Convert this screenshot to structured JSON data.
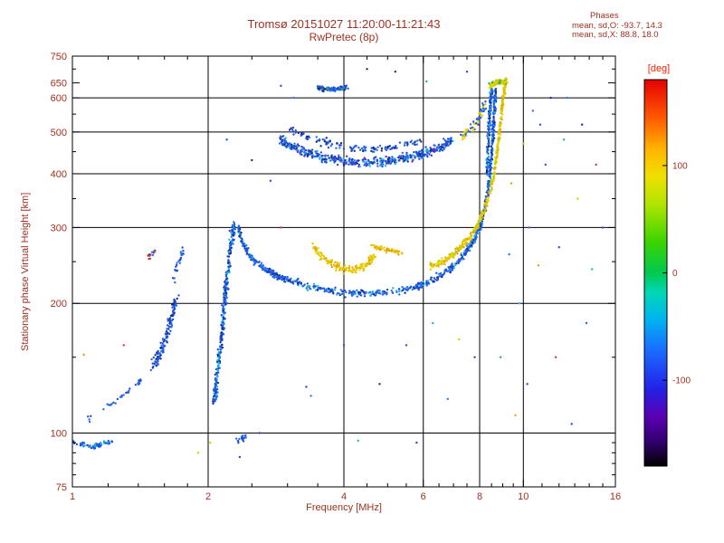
{
  "colors": {
    "background": "#ffffff",
    "text": "#a03020",
    "accent_red": "#ff1a00",
    "axis": "#000000",
    "grid": "#000000"
  },
  "chart_data": {
    "type": "scatter",
    "title": "Tromsø 20151027 11:20:00-11:21:43",
    "subtitle": "RwPretec (8p)",
    "annotations": [
      "Phases",
      "mean, sd,O: -93.7, 14.3",
      "mean, sd,X:  88.8, 18.0"
    ],
    "xlabel": "Frequency [MHz]",
    "ylabel": "Stationary phase Virtual Height [km]",
    "x_scale": "log",
    "y_scale": "log",
    "xlim": [
      1,
      16
    ],
    "ylim": [
      75,
      750
    ],
    "x_ticks": [
      1,
      2,
      4,
      6,
      8,
      10,
      16
    ],
    "y_ticks": [
      75,
      100,
      200,
      300,
      400,
      500,
      600,
      650,
      750
    ],
    "x_minor_ticks": [
      1.2,
      1.4,
      1.6,
      1.8,
      2.5,
      3,
      3.5,
      4.5,
      5,
      5.5,
      6.5,
      7,
      7.5,
      8.5,
      9,
      9.5,
      11,
      12,
      13,
      14,
      15
    ],
    "y_minor_ticks": [
      80,
      85,
      90,
      95,
      150,
      250,
      350,
      450,
      550,
      700
    ],
    "grid_x": [
      2,
      4,
      6,
      8,
      10
    ],
    "grid_y": [
      100,
      200,
      300,
      400,
      500,
      600
    ],
    "colorbar": {
      "title": "[deg]",
      "ticks": [
        100,
        0,
        -100
      ],
      "range": [
        -180,
        180
      ],
      "stops": [
        [
          0.0,
          "#000000"
        ],
        [
          0.06,
          "#30006a"
        ],
        [
          0.13,
          "#5a00b4"
        ],
        [
          0.2,
          "#2222e6"
        ],
        [
          0.3,
          "#1b6cff"
        ],
        [
          0.38,
          "#00b4f0"
        ],
        [
          0.45,
          "#00d8b4"
        ],
        [
          0.5,
          "#00c850"
        ],
        [
          0.58,
          "#3cd400"
        ],
        [
          0.68,
          "#b4e400"
        ],
        [
          0.75,
          "#f0e000"
        ],
        [
          0.82,
          "#ffb400"
        ],
        [
          0.9,
          "#ff5a00"
        ],
        [
          1.0,
          "#e60000"
        ]
      ]
    },
    "traces": [
      {
        "name": "e-region-blob",
        "path": [
          [
            1.0,
            95
          ],
          [
            1.12,
            93
          ],
          [
            1.22,
            96
          ]
        ],
        "n": 70,
        "sx": 0.006,
        "sy": 0.008,
        "colors": [
          "#1f4fd8",
          "#2a6cf0",
          "#1f4fd8",
          "#18b8e8"
        ]
      },
      {
        "name": "low-chain",
        "path": [
          [
            1.08,
            108
          ],
          [
            1.2,
            116
          ],
          [
            1.32,
            124
          ],
          [
            1.42,
            132
          ]
        ],
        "n": 30,
        "sx": 0.006,
        "sy": 0.01,
        "colors": [
          "#1f4fd8",
          "#2a6cf0"
        ]
      },
      {
        "name": "left-cluster",
        "path": [
          [
            1.5,
            142
          ],
          [
            1.56,
            152
          ],
          [
            1.62,
            168
          ],
          [
            1.66,
            185
          ],
          [
            1.7,
            205
          ]
        ],
        "n": 130,
        "sx": 0.008,
        "sy": 0.02,
        "colors": [
          "#1f4fd8",
          "#2a6cf0",
          "#1f4fd8",
          "#0e2f8c"
        ]
      },
      {
        "name": "left-cluster-upper",
        "path": [
          [
            1.68,
            225
          ],
          [
            1.72,
            250
          ],
          [
            1.76,
            268
          ]
        ],
        "n": 25,
        "sx": 0.006,
        "sy": 0.012,
        "colors": [
          "#1f4fd8",
          "#2a6cf0"
        ]
      },
      {
        "name": "left-spur",
        "path": [
          [
            1.47,
            255
          ],
          [
            1.52,
            265
          ]
        ],
        "n": 14,
        "sx": 0.005,
        "sy": 0.01,
        "colors": [
          "#1f4fd8",
          "#d43a20",
          "#2a6cf0"
        ]
      },
      {
        "name": "asymptote-2mhz",
        "path": [
          [
            2.06,
            118
          ],
          [
            2.1,
            140
          ],
          [
            2.14,
            165
          ],
          [
            2.17,
            195
          ],
          [
            2.2,
            230
          ],
          [
            2.24,
            268
          ],
          [
            2.28,
            305
          ]
        ],
        "n": 330,
        "sx": 0.007,
        "sy": 0.02,
        "colors": [
          "#1f4fd8",
          "#2a6cf0",
          "#1f4fd8",
          "#0e2f8c",
          "#18b8e8"
        ]
      },
      {
        "name": "bottom-blob-2",
        "path": [
          [
            2.32,
            96
          ],
          [
            2.42,
            98
          ]
        ],
        "n": 18,
        "sx": 0.006,
        "sy": 0.008,
        "colors": [
          "#1f4fd8",
          "#2a6cf0"
        ]
      },
      {
        "name": "main-o-trace",
        "path": [
          [
            2.33,
            300
          ],
          [
            2.4,
            272
          ],
          [
            2.52,
            252
          ],
          [
            2.68,
            240
          ],
          [
            2.9,
            230
          ],
          [
            3.2,
            222
          ],
          [
            3.6,
            215
          ],
          [
            4.1,
            211
          ],
          [
            4.7,
            211
          ],
          [
            5.3,
            214
          ],
          [
            5.9,
            220
          ],
          [
            6.4,
            229
          ],
          [
            6.9,
            241
          ],
          [
            7.35,
            257
          ],
          [
            7.75,
            278
          ],
          [
            8.05,
            305
          ],
          [
            8.28,
            345
          ],
          [
            8.42,
            395
          ],
          [
            8.52,
            450
          ],
          [
            8.58,
            510
          ],
          [
            8.63,
            570
          ],
          [
            8.68,
            630
          ]
        ],
        "n": 850,
        "sx": 0.004,
        "sy": 0.012,
        "colors": [
          "#1f4fd8",
          "#2a6cf0",
          "#1f4fd8",
          "#2a6cf0",
          "#18b8e8",
          "#0e2f8c"
        ]
      },
      {
        "name": "x-hook",
        "path": [
          [
            3.42,
            272
          ],
          [
            3.58,
            256
          ],
          [
            3.78,
            246
          ],
          [
            4.0,
            240
          ],
          [
            4.25,
            240
          ],
          [
            4.5,
            247
          ],
          [
            4.68,
            258
          ]
        ],
        "n": 160,
        "sx": 0.005,
        "sy": 0.014,
        "colors": [
          "#e0c800",
          "#f0d400",
          "#e8a000",
          "#e0c800"
        ]
      },
      {
        "name": "mid-yellow-streak",
        "path": [
          [
            4.6,
            272
          ],
          [
            5.0,
            266
          ],
          [
            5.4,
            262
          ]
        ],
        "n": 55,
        "sx": 0.006,
        "sy": 0.008,
        "colors": [
          "#e0c800",
          "#f0d400",
          "#e8a000"
        ]
      },
      {
        "name": "x-rising",
        "path": [
          [
            6.2,
            243
          ],
          [
            6.7,
            252
          ],
          [
            7.15,
            265
          ],
          [
            7.55,
            282
          ],
          [
            7.95,
            306
          ],
          [
            8.3,
            340
          ],
          [
            8.6,
            395
          ],
          [
            8.78,
            460
          ],
          [
            8.9,
            525
          ],
          [
            9.0,
            585
          ],
          [
            9.08,
            635
          ],
          [
            9.15,
            660
          ]
        ],
        "n": 420,
        "sx": 0.004,
        "sy": 0.012,
        "colors": [
          "#e0c800",
          "#f0d400",
          "#e8a000",
          "#e0c800",
          "#a8d800"
        ]
      },
      {
        "name": "upper-band",
        "path": [
          [
            2.88,
            480
          ],
          [
            3.05,
            462
          ],
          [
            3.3,
            448
          ],
          [
            3.6,
            437
          ],
          [
            4.0,
            428
          ],
          [
            4.45,
            424
          ],
          [
            4.95,
            427
          ],
          [
            5.45,
            434
          ],
          [
            5.95,
            444
          ],
          [
            6.45,
            458
          ],
          [
            6.95,
            478
          ]
        ],
        "n": 520,
        "sx": 0.005,
        "sy": 0.016,
        "colors": [
          "#1f4fd8",
          "#2a6cf0",
          "#1f4fd8",
          "#0e2f8c",
          "#18b8e8",
          "#5a30c8"
        ]
      },
      {
        "name": "upper-band-2",
        "path": [
          [
            3.0,
            508
          ],
          [
            3.4,
            482
          ],
          [
            3.9,
            464
          ],
          [
            4.4,
            456
          ],
          [
            4.9,
            458
          ],
          [
            5.4,
            466
          ],
          [
            5.9,
            478
          ]
        ],
        "n": 120,
        "sx": 0.006,
        "sy": 0.012,
        "colors": [
          "#1f4fd8",
          "#2a6cf0",
          "#0e2f8c"
        ]
      },
      {
        "name": "top-left-cluster",
        "path": [
          [
            3.48,
            632
          ],
          [
            3.7,
            628
          ],
          [
            3.9,
            630
          ],
          [
            4.05,
            634
          ]
        ],
        "n": 90,
        "sx": 0.006,
        "sy": 0.008,
        "colors": [
          "#1f4fd8",
          "#0e2f8c",
          "#2a6cf0",
          "#1f4fd8",
          "#30b050"
        ]
      },
      {
        "name": "right-column-blue",
        "path": [
          [
            8.3,
            400
          ],
          [
            8.35,
            460
          ],
          [
            8.4,
            520
          ],
          [
            8.45,
            575
          ],
          [
            8.5,
            625
          ]
        ],
        "n": 160,
        "sx": 0.004,
        "sy": 0.02,
        "colors": [
          "#1f4fd8",
          "#2a6cf0",
          "#18b8e8",
          "#0e2f8c"
        ]
      },
      {
        "name": "right-top-arc",
        "path": [
          [
            8.45,
            640
          ],
          [
            8.7,
            652
          ],
          [
            8.95,
            655
          ],
          [
            9.15,
            648
          ]
        ],
        "n": 110,
        "sx": 0.005,
        "sy": 0.008,
        "colors": [
          "#e0c800",
          "#f0d400",
          "#a8d800",
          "#e0c800",
          "#30b050"
        ]
      },
      {
        "name": "right-upper-rise",
        "path": [
          [
            7.3,
            490
          ],
          [
            7.7,
            510
          ],
          [
            8.0,
            540
          ],
          [
            8.2,
            580
          ]
        ],
        "n": 70,
        "sx": 0.006,
        "sy": 0.015,
        "colors": [
          "#1f4fd8",
          "#e0c800",
          "#2a6cf0",
          "#f0d400"
        ]
      }
    ],
    "singles": [
      [
        1.06,
        152,
        "#e8a000"
      ],
      [
        1.3,
        160,
        "#d43a20"
      ],
      [
        1.9,
        90,
        "#e0c800"
      ],
      [
        2.02,
        95,
        "#e0c800"
      ],
      [
        2.35,
        88,
        "#1f4fd8"
      ],
      [
        2.6,
        100,
        "#1f4fd8"
      ],
      [
        2.9,
        300,
        "#d43a20"
      ],
      [
        3.3,
        128,
        "#1f4fd8"
      ],
      [
        3.38,
        122,
        "#2a6cf0"
      ],
      [
        4.0,
        160,
        "#1f4fd8"
      ],
      [
        4.3,
        96,
        "#18b8e8"
      ],
      [
        4.8,
        130,
        "#0e2f8c"
      ],
      [
        5.5,
        160,
        "#1f4fd8"
      ],
      [
        5.8,
        95,
        "#1f4fd8"
      ],
      [
        6.3,
        180,
        "#18b8e8"
      ],
      [
        6.8,
        120,
        "#2a6cf0"
      ],
      [
        7.2,
        165,
        "#e0c800"
      ],
      [
        7.8,
        150,
        "#1f4fd8"
      ],
      [
        8.9,
        150,
        "#30b050"
      ],
      [
        9.3,
        260,
        "#2a6cf0"
      ],
      [
        9.6,
        110,
        "#e8a000"
      ],
      [
        9.8,
        200,
        "#18b8e8"
      ],
      [
        10.2,
        130,
        "#1f4fd8"
      ],
      [
        10.3,
        300,
        "#2a6cf0"
      ],
      [
        10.5,
        560,
        "#2a6cf0"
      ],
      [
        10.8,
        245,
        "#e8a000"
      ],
      [
        10.0,
        470,
        "#e0c800"
      ],
      [
        10.9,
        520,
        "#1f4fd8"
      ],
      [
        11.2,
        420,
        "#1f4fd8"
      ],
      [
        11.5,
        600,
        "#0e2f8c"
      ],
      [
        11.8,
        150,
        "#d43a20"
      ],
      [
        12.0,
        270,
        "#5a30c8"
      ],
      [
        12.3,
        480,
        "#30b050"
      ],
      [
        12.5,
        600,
        "#2a6cf0"
      ],
      [
        12.8,
        105,
        "#1f4fd8"
      ],
      [
        13.2,
        350,
        "#e0c800"
      ],
      [
        13.5,
        520,
        "#0e2f8c"
      ],
      [
        13.8,
        180,
        "#2a6cf0"
      ],
      [
        14.2,
        240,
        "#18b8e8"
      ],
      [
        14.5,
        420,
        "#d43a20"
      ],
      [
        15.0,
        300,
        "#1f4fd8"
      ],
      [
        9.4,
        380,
        "#e8a000"
      ],
      [
        2.9,
        640,
        "#1f4fd8"
      ],
      [
        3.1,
        600,
        "#2a6cf0"
      ],
      [
        2.2,
        480,
        "#1f4fd8"
      ],
      [
        2.5,
        430,
        "#0e2f8c"
      ],
      [
        2.75,
        385,
        "#1f4fd8"
      ],
      [
        4.5,
        700,
        "#0e2f8c"
      ],
      [
        5.2,
        690,
        "#0e2f8c"
      ],
      [
        6.1,
        655,
        "#30b050"
      ],
      [
        7.5,
        690,
        "#1f4fd8"
      ]
    ]
  }
}
